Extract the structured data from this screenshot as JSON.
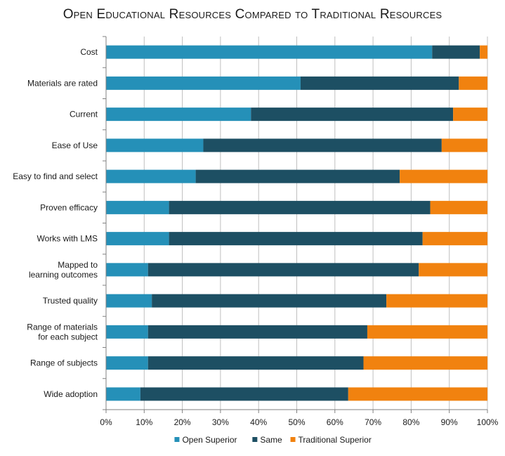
{
  "chart_data": {
    "type": "bar",
    "orientation": "horizontal",
    "stacked": true,
    "title": "Open Educational Resources Compared to Traditional Resources",
    "xlabel": "",
    "ylabel": "",
    "xlim": [
      0,
      100
    ],
    "x_ticks": [
      "0%",
      "10%",
      "20%",
      "30%",
      "40%",
      "50%",
      "60%",
      "70%",
      "80%",
      "90%",
      "100%"
    ],
    "grid": true,
    "legend_position": "bottom",
    "categories": [
      [
        "Cost"
      ],
      [
        "Materials are rated"
      ],
      [
        "Current"
      ],
      [
        "Ease of Use"
      ],
      [
        "Easy to find and select"
      ],
      [
        "Proven efficacy"
      ],
      [
        "Works with LMS"
      ],
      [
        "Mapped to",
        "learning outcomes"
      ],
      [
        "Trusted quality"
      ],
      [
        "Range of materials",
        "for each subject"
      ],
      [
        "Range of subjects"
      ],
      [
        "Wide adoption"
      ]
    ],
    "series": [
      {
        "name": "Open Superior",
        "color": "#2590b8",
        "values": [
          85.5,
          51,
          38,
          25.5,
          23.5,
          16.5,
          16.5,
          11,
          12,
          11,
          11,
          9
        ]
      },
      {
        "name": "Same",
        "color": "#1d4f63",
        "values": [
          12.5,
          41.5,
          53,
          62.5,
          53.5,
          68.5,
          66.5,
          71,
          61.5,
          57.5,
          56.5,
          54.5
        ]
      },
      {
        "name": "Traditional Superior",
        "color": "#f1820f",
        "values": [
          2,
          7.5,
          9,
          12,
          23,
          15,
          17,
          18,
          26.5,
          31.5,
          32.5,
          36.5
        ]
      }
    ]
  }
}
